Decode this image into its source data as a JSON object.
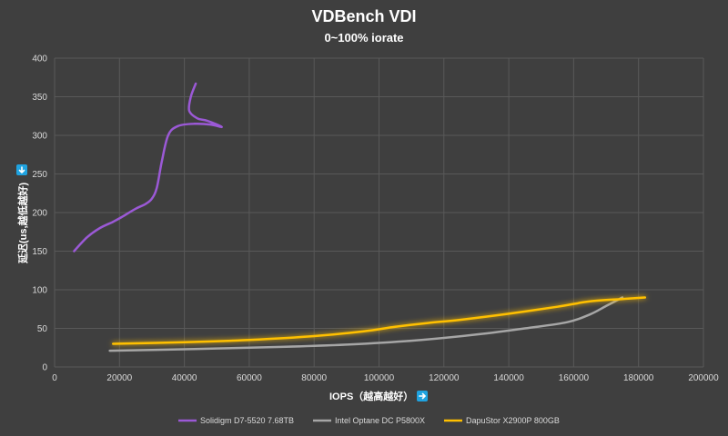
{
  "colors": {
    "background": "#3f3f3f",
    "grid": "#595959",
    "arrow_badge": "#1fa3e0"
  },
  "icons": {
    "y_axis_arrow": "down-arrow-icon",
    "x_axis_arrow": "right-arrow-icon"
  },
  "chart_data": {
    "type": "line",
    "title": "VDBench VDI",
    "subtitle": "0~100% iorate",
    "xlabel": "IOPS（越高越好）",
    "ylabel": "延迟(us,越低越好)",
    "xlim": [
      0,
      200000
    ],
    "ylim": [
      0,
      400
    ],
    "xticks": [
      0,
      20000,
      40000,
      60000,
      80000,
      100000,
      120000,
      140000,
      160000,
      180000,
      200000
    ],
    "yticks": [
      0,
      50,
      100,
      150,
      200,
      250,
      300,
      350,
      400
    ],
    "grid": true,
    "legend_position": "bottom",
    "series": [
      {
        "name": "Solidigm D7-5520 7.68TB",
        "color": "#9b59d6",
        "glow": false,
        "points": [
          [
            6000,
            150
          ],
          [
            10000,
            168
          ],
          [
            14000,
            180
          ],
          [
            18000,
            188
          ],
          [
            21000,
            195
          ],
          [
            25000,
            205
          ],
          [
            28000,
            211
          ],
          [
            30000,
            218
          ],
          [
            31500,
            232
          ],
          [
            33000,
            265
          ],
          [
            35000,
            300
          ],
          [
            38000,
            312
          ],
          [
            43000,
            315
          ],
          [
            48000,
            314
          ],
          [
            51500,
            311
          ],
          [
            47000,
            319
          ],
          [
            44000,
            322
          ],
          [
            41500,
            332
          ],
          [
            42000,
            350
          ],
          [
            43500,
            367
          ]
        ]
      },
      {
        "name": "Intel Optane DC P5800X",
        "color": "#a6a6a6",
        "glow": false,
        "points": [
          [
            17000,
            21
          ],
          [
            30000,
            22
          ],
          [
            50000,
            24
          ],
          [
            70000,
            26
          ],
          [
            90000,
            29
          ],
          [
            110000,
            34
          ],
          [
            130000,
            42
          ],
          [
            145000,
            50
          ],
          [
            158000,
            58
          ],
          [
            165000,
            68
          ],
          [
            170000,
            79
          ],
          [
            175000,
            90
          ]
        ]
      },
      {
        "name": "DapuStor X2900P 800GB",
        "color": "#ffc000",
        "glow": true,
        "points": [
          [
            18000,
            30
          ],
          [
            40000,
            32
          ],
          [
            60000,
            35
          ],
          [
            80000,
            40
          ],
          [
            95000,
            46
          ],
          [
            105000,
            52
          ],
          [
            115000,
            57
          ],
          [
            125000,
            61
          ],
          [
            140000,
            69
          ],
          [
            155000,
            78
          ],
          [
            165000,
            85
          ],
          [
            175000,
            88
          ],
          [
            182000,
            90
          ]
        ]
      }
    ]
  }
}
